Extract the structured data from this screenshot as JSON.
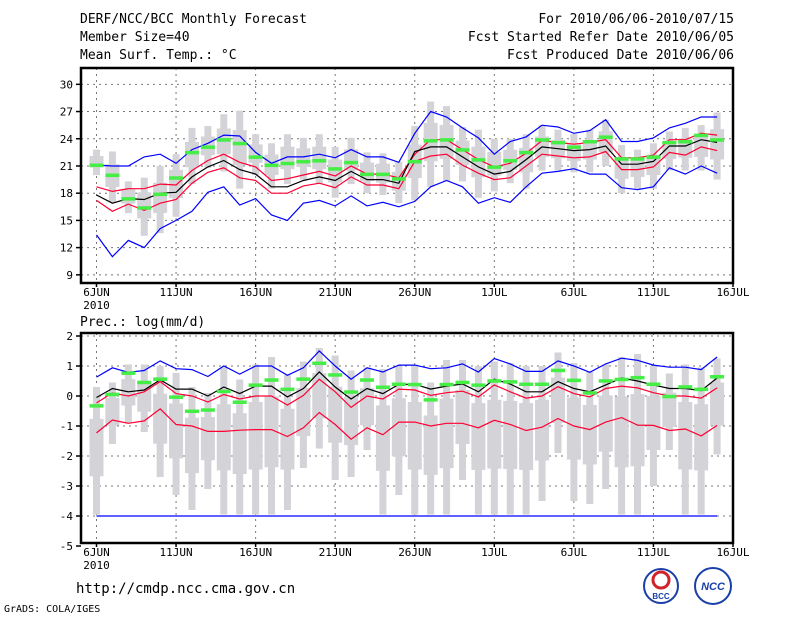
{
  "header": {
    "title": "DERF/NCC/BCC Monthly Forecast",
    "member_size": "Member Size=40",
    "variable": "Mean Surf. Temp.: °C",
    "period": "For 2010/06/06-2010/07/15",
    "started": "Fcst Started Refer Date 2010/06/05",
    "produced": "Fcst Produced Date 2010/06/06"
  },
  "footer": {
    "url": "http://cmdp.ncc.cma.gov.cn",
    "grads": "GrADS: COLA/IGES",
    "logo_left": "BCC",
    "logo_right": "NCC"
  },
  "colors": {
    "max_min": "#0000ff",
    "spread": "#ff0033",
    "mean": "#000000",
    "box": "#d3d3d8",
    "marker": "#44ee44"
  },
  "chart_data": [
    {
      "type": "line",
      "title": "Mean Surf. Temp.: °C",
      "ylabel": "",
      "ylim": [
        8.1,
        31.8
      ],
      "yticks": [
        9,
        12,
        15,
        18,
        21,
        24,
        27,
        30
      ],
      "xlim": [
        0,
        40
      ],
      "xticks": [
        {
          "day": 0,
          "label": "6JUN",
          "sub": "2010"
        },
        {
          "day": 5,
          "label": "11JUN"
        },
        {
          "day": 10,
          "label": "16JUN"
        },
        {
          "day": 15,
          "label": "21JUN"
        },
        {
          "day": 20,
          "label": "26JUN"
        },
        {
          "day": 25,
          "label": "1JUL"
        },
        {
          "day": 30,
          "label": "6JUL"
        },
        {
          "day": 35,
          "label": "11JUL"
        },
        {
          "day": 40,
          "label": "16JUL"
        }
      ],
      "grid": true,
      "series": [
        {
          "name": "max",
          "color": "#0000ff",
          "values": [
            21.1,
            21.0,
            21.0,
            22.0,
            22.3,
            21.3,
            22.8,
            23.5,
            24.4,
            24.3,
            22.5,
            21.3,
            22.0,
            22.0,
            22.3,
            21.9,
            22.8,
            22.0,
            22.0,
            21.4,
            24.6,
            27.0,
            26.4,
            25.2,
            24.1,
            22.3,
            23.7,
            24.2,
            25.5,
            25.3,
            24.6,
            24.9,
            26.1,
            23.7,
            23.7,
            24.1,
            25.2,
            25.7,
            26.4,
            26.4
          ]
        },
        {
          "name": "upper",
          "color": "#ff0033",
          "values": [
            18.7,
            18.2,
            18.5,
            18.5,
            19.0,
            18.9,
            20.5,
            21.6,
            22.3,
            21.4,
            20.9,
            19.4,
            19.6,
            20.0,
            20.4,
            19.9,
            21.0,
            20.1,
            20.1,
            19.7,
            22.3,
            23.9,
            23.9,
            22.8,
            21.7,
            20.9,
            21.3,
            22.4,
            23.8,
            23.6,
            23.4,
            23.6,
            23.9,
            21.9,
            21.9,
            22.2,
            23.9,
            23.9,
            24.6,
            24.4
          ]
        },
        {
          "name": "mean",
          "color": "#000000",
          "values": [
            17.8,
            16.9,
            17.4,
            17.3,
            18.0,
            18.1,
            19.8,
            20.9,
            21.6,
            20.6,
            20.1,
            18.7,
            18.7,
            19.4,
            19.8,
            19.4,
            20.4,
            19.5,
            19.5,
            19.1,
            22.6,
            23.1,
            23.1,
            22.0,
            20.9,
            20.1,
            20.4,
            21.7,
            23.1,
            22.9,
            22.7,
            22.8,
            23.2,
            21.2,
            21.2,
            21.5,
            23.2,
            23.2,
            23.9,
            23.6
          ]
        },
        {
          "name": "lower",
          "color": "#ff0033",
          "values": [
            17.2,
            16.0,
            16.8,
            16.1,
            16.9,
            17.3,
            19.1,
            20.3,
            20.8,
            19.7,
            19.4,
            18.0,
            18.0,
            18.8,
            19.1,
            18.6,
            19.8,
            18.9,
            18.9,
            18.5,
            21.5,
            22.1,
            22.3,
            21.1,
            20.2,
            19.5,
            19.7,
            21.0,
            22.3,
            22.1,
            21.9,
            22.0,
            22.6,
            20.6,
            20.6,
            20.9,
            22.5,
            22.2,
            23.1,
            22.7
          ]
        },
        {
          "name": "min",
          "color": "#0000ff",
          "values": [
            13.4,
            11.0,
            12.8,
            12.0,
            14.1,
            15.0,
            16.0,
            18.1,
            18.7,
            16.7,
            17.4,
            15.6,
            15.0,
            16.9,
            17.2,
            16.6,
            17.7,
            16.6,
            17.0,
            16.5,
            17.1,
            18.7,
            19.4,
            18.7,
            16.9,
            17.5,
            17.0,
            18.7,
            20.2,
            20.4,
            20.7,
            20.1,
            20.1,
            18.6,
            18.4,
            18.7,
            20.8,
            20.1,
            21.0,
            20.2
          ]
        },
        {
          "name": "observed",
          "color": "#44ee44",
          "values": [
            21.1,
            20.0,
            17.4,
            16.4,
            17.9,
            19.7,
            22.5,
            23.1,
            23.9,
            23.5,
            22.0,
            21.1,
            21.3,
            21.5,
            21.6,
            20.7,
            21.4,
            20.1,
            20.1,
            19.6,
            21.5,
            23.8,
            23.9,
            22.8,
            21.7,
            20.9,
            21.6,
            22.5,
            23.9,
            23.6,
            23.1,
            23.7,
            24.2,
            21.8,
            21.8,
            22.0,
            23.6,
            23.7,
            24.4,
            23.9
          ]
        }
      ],
      "range_low": [
        20.0,
        17.0,
        15.8,
        13.3,
        13.6,
        15.4,
        19.0,
        20.8,
        20.4,
        18.5,
        20.0,
        18.5,
        19.0,
        19.5,
        19.0,
        17.5,
        19.0,
        18.0,
        17.8,
        16.9,
        17.2,
        18.7,
        19.3,
        19.3,
        17.5,
        18.2,
        19.1,
        18.5,
        20.5,
        20.5,
        20.3,
        20.3,
        21.0,
        18.0,
        18.5,
        18.5,
        20.5,
        20.5,
        20.5,
        19.5
      ],
      "range_high": [
        22.8,
        22.6,
        19.3,
        19.7,
        21.0,
        22.3,
        25.2,
        25.4,
        26.7,
        27.1,
        24.5,
        23.5,
        24.5,
        24.1,
        24.5,
        23.1,
        24.1,
        22.5,
        22.4,
        21.5,
        25.4,
        28.1,
        27.6,
        25.3,
        25.0,
        24.0,
        24.0,
        24.5,
        25.5,
        25.0,
        24.5,
        25.0,
        26.1,
        23.3,
        22.8,
        23.5,
        24.8,
        25.2,
        25.5,
        26.9
      ]
    },
    {
      "type": "line",
      "title": "Prec.: log(mm/d)",
      "ylabel": "",
      "ylim": [
        -4.9,
        2.1
      ],
      "yticks": [
        -5,
        -4,
        -3,
        -2,
        -1,
        0,
        1,
        2
      ],
      "xlim": [
        0,
        40
      ],
      "xticks": [
        {
          "day": 0,
          "label": "6JUN",
          "sub": "2010"
        },
        {
          "day": 5,
          "label": "11JUN"
        },
        {
          "day": 10,
          "label": "16JUN"
        },
        {
          "day": 15,
          "label": "21JUN"
        },
        {
          "day": 20,
          "label": "26JUN"
        },
        {
          "day": 25,
          "label": "1JUL"
        },
        {
          "day": 30,
          "label": "6JUL"
        },
        {
          "day": 35,
          "label": "11JUL"
        },
        {
          "day": 40,
          "label": "16JUL"
        }
      ],
      "grid": true,
      "series": [
        {
          "name": "max",
          "color": "#0000ff",
          "values": [
            0.63,
            0.94,
            0.79,
            0.85,
            1.17,
            0.91,
            0.88,
            0.65,
            1.0,
            0.73,
            1.0,
            1.0,
            0.69,
            0.94,
            1.5,
            1.0,
            0.56,
            0.94,
            0.8,
            1.03,
            1.03,
            0.91,
            0.94,
            1.07,
            0.8,
            1.25,
            1.07,
            0.82,
            0.82,
            1.17,
            1.0,
            0.79,
            1.07,
            1.26,
            1.19,
            1.03,
            0.96,
            0.96,
            0.88,
            1.3
          ]
        },
        {
          "name": "upper",
          "color": "#ff0033",
          "values": [
            -0.23,
            0.1,
            0.0,
            0.14,
            0.48,
            0.08,
            0.0,
            -0.2,
            0.05,
            -0.1,
            0.0,
            0.0,
            -0.3,
            0.02,
            0.56,
            0.14,
            -0.38,
            0.0,
            -0.1,
            0.23,
            0.2,
            0.02,
            0.11,
            0.16,
            -0.03,
            0.37,
            0.14,
            -0.07,
            0.0,
            0.31,
            0.08,
            -0.03,
            0.25,
            0.33,
            0.27,
            0.11,
            0.0,
            0.0,
            -0.07,
            0.27
          ]
        },
        {
          "name": "mean",
          "color": "#000000",
          "values": [
            -0.05,
            0.25,
            0.14,
            0.2,
            0.54,
            0.23,
            0.23,
            0.0,
            0.3,
            0.08,
            0.33,
            0.33,
            -0.03,
            0.25,
            0.8,
            0.3,
            -0.1,
            0.25,
            0.08,
            0.39,
            0.39,
            0.23,
            0.33,
            0.4,
            0.14,
            0.56,
            0.4,
            0.14,
            0.14,
            0.48,
            0.25,
            0.14,
            0.37,
            0.6,
            0.5,
            0.37,
            0.25,
            0.25,
            0.18,
            0.6
          ]
        },
        {
          "name": "lower",
          "color": "#ff0033",
          "values": [
            -1.23,
            -0.8,
            -0.91,
            -0.83,
            -0.43,
            -0.95,
            -1.0,
            -1.18,
            -1.18,
            -1.14,
            -1.12,
            -1.12,
            -1.35,
            -1.06,
            -0.55,
            -0.95,
            -1.44,
            -1.06,
            -1.29,
            -0.87,
            -0.87,
            -1.0,
            -0.91,
            -0.91,
            -1.06,
            -0.81,
            -0.95,
            -1.15,
            -1.04,
            -0.75,
            -1.0,
            -1.12,
            -0.87,
            -0.72,
            -0.97,
            -0.98,
            -1.15,
            -1.1,
            -1.33,
            -0.98
          ]
        },
        {
          "name": "min",
          "color": "#0000ff",
          "values": [
            -4,
            -4,
            -4,
            -4,
            -4,
            -4,
            -4,
            -4,
            -4,
            -4,
            -4,
            -4,
            -4,
            -4,
            -4,
            -4,
            -4,
            -4,
            -4,
            -4,
            -4,
            -4,
            -4,
            -4,
            -4,
            -4,
            -4,
            -4,
            -4,
            -4,
            -4,
            -4,
            -4,
            -4,
            -4,
            -4,
            -4,
            -4,
            -4,
            -4
          ]
        },
        {
          "name": "observed",
          "color": "#44ee44",
          "values": [
            -0.32,
            0.06,
            0.77,
            0.46,
            0.57,
            -0.03,
            -0.5,
            -0.46,
            0.16,
            -0.2,
            0.37,
            0.54,
            0.23,
            0.57,
            1.1,
            0.71,
            0.14,
            0.54,
            0.3,
            0.4,
            0.39,
            -0.12,
            0.39,
            0.46,
            0.37,
            0.51,
            0.48,
            0.4,
            0.4,
            0.86,
            0.53,
            0.11,
            0.51,
            0.56,
            0.62,
            0.4,
            -0.01,
            0.31,
            0.23,
            0.65
          ]
        }
      ],
      "range_low": [
        -3.95,
        -1.6,
        -0.9,
        -1.2,
        -2.7,
        -3.3,
        -3.8,
        -3.1,
        -3.95,
        -3.95,
        -3.95,
        -3.95,
        -3.8,
        -2.4,
        -1.75,
        -2.8,
        -2.7,
        -1.8,
        -3.95,
        -3.3,
        -3.95,
        -3.95,
        -3.95,
        -2.8,
        -3.95,
        -3.95,
        -3.95,
        -3.95,
        -3.5,
        -1.9,
        -3.5,
        -3.6,
        -3.1,
        -3.95,
        -3.95,
        -3.0,
        -1.8,
        -3.95,
        -3.95,
        -1.95
      ],
      "range_high": [
        0.3,
        0.45,
        1.05,
        1.05,
        1.0,
        0.77,
        0.3,
        0.1,
        0.95,
        0.55,
        1.05,
        1.3,
        0.7,
        1.15,
        1.6,
        1.35,
        0.85,
        0.95,
        0.9,
        1.0,
        1.05,
        0.45,
        1.2,
        1.2,
        1.0,
        1.15,
        1.1,
        1.0,
        1.0,
        1.45,
        1.1,
        0.8,
        1.05,
        1.3,
        1.4,
        1.0,
        0.75,
        1.05,
        0.95,
        1.25
      ]
    }
  ]
}
